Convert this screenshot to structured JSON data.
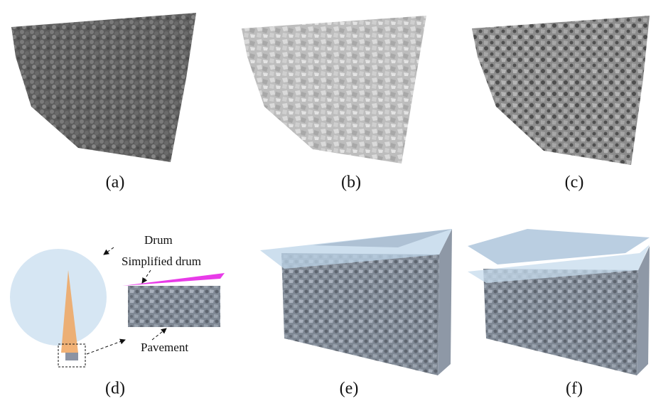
{
  "panels": [
    {
      "label": "(a)"
    },
    {
      "label": "(b)"
    },
    {
      "label": "(c)"
    },
    {
      "label": "(d)"
    },
    {
      "label": "(e)"
    },
    {
      "label": "(f)"
    }
  ],
  "annotations": {
    "drum": "Drum",
    "simplified_drum": "Simplified drum",
    "pavement": "Pavement"
  }
}
